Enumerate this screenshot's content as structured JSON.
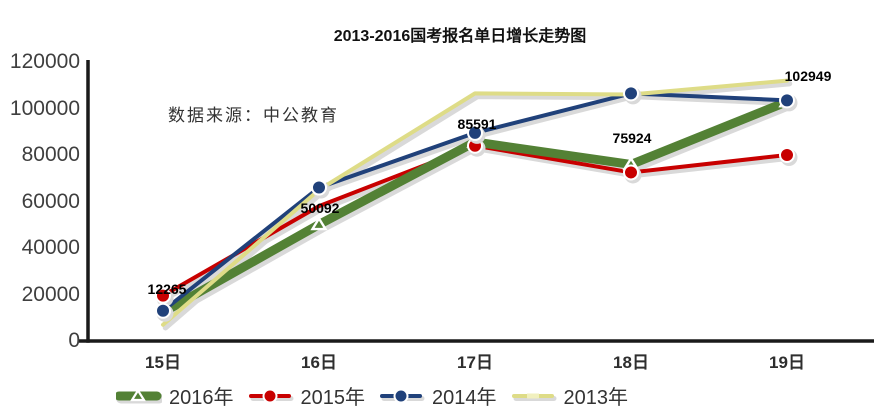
{
  "chart": {
    "title": "2013-2016国考报名单日增长走势图",
    "source_note": "数据来源：中公教育"
  },
  "chart_data": {
    "type": "line",
    "title": "2013-2016国考报名单日增长走势图",
    "source_note": "数据来源：中公教育",
    "categories": [
      "15日",
      "16日",
      "17日",
      "18日",
      "19日"
    ],
    "series": [
      {
        "name": "2016年",
        "color": "#538135",
        "width": 9,
        "marker": "triangle",
        "values": [
          12265,
          50092,
          85591,
          75924,
          102949
        ]
      },
      {
        "name": "2015年",
        "color": "#C80000",
        "width": 4,
        "marker": "circle",
        "values": [
          19500,
          58000,
          84000,
          72500,
          80000
        ]
      },
      {
        "name": "2014年",
        "color": "#20417A",
        "width": 4,
        "marker": "circle",
        "values": [
          13000,
          66000,
          89500,
          106500,
          103500
        ]
      },
      {
        "name": "2013年",
        "color": "#DEDC87",
        "width": 4,
        "marker": "dash",
        "values": [
          7000,
          65000,
          106500,
          106000,
          112000
        ]
      }
    ],
    "data_labels": [
      "12265",
      "50092",
      "85591",
      "75924",
      "102949"
    ],
    "data_labels_series": "2016年",
    "xlabel": "",
    "ylabel": "",
    "ylim": [
      0,
      120000
    ],
    "ytick_step": 20000,
    "yticks": [
      "0",
      "20000",
      "40000",
      "60000",
      "80000",
      "100000",
      "120000"
    ],
    "grid": false,
    "legend_position": "bottom",
    "shadow_color": "#D9D9D9",
    "axis_color": "#1a1a1a"
  }
}
